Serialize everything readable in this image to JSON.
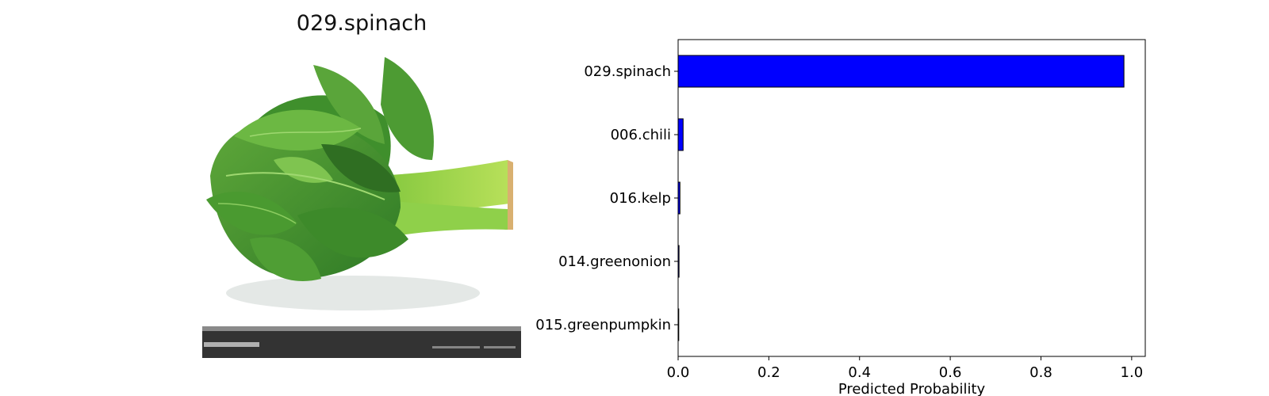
{
  "image_panel": {
    "title": "029.spinach",
    "photo_icon": "spinach-photo",
    "footer_band_color": "#333333",
    "footer_strip_color": "#8a8a8a"
  },
  "chart_data": {
    "type": "bar",
    "orientation": "horizontal",
    "categories": [
      "029.spinach",
      "006.chili",
      "016.kelp",
      "014.greenonion",
      "015.greenpumpkin"
    ],
    "values": [
      0.983,
      0.011,
      0.004,
      0.002,
      0.001
    ],
    "title": "",
    "xlabel": "Predicted Probability",
    "ylabel": "",
    "xlim": [
      0,
      1.03
    ],
    "xticks": [
      0.0,
      0.2,
      0.4,
      0.6,
      0.8,
      1.0
    ],
    "xtick_labels": [
      "0.0",
      "0.2",
      "0.4",
      "0.6",
      "0.8",
      "1.0"
    ],
    "grid": false,
    "legend": "none",
    "bar_color": "#0000ff",
    "bar_edge_color": "#000000"
  }
}
